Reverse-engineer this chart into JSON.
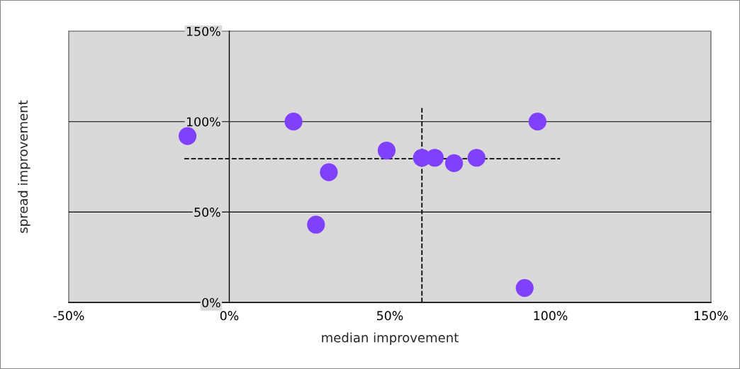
{
  "chart_data": {
    "type": "scatter",
    "xlabel": "median improvement",
    "ylabel": "spread improvement",
    "xlim": [
      -50,
      150
    ],
    "ylim": [
      0,
      150
    ],
    "xticks": [
      {
        "value": -50,
        "label": "-50%"
      },
      {
        "value": 0,
        "label": "0%"
      },
      {
        "value": 50,
        "label": "50%"
      },
      {
        "value": 100,
        "label": "100%"
      },
      {
        "value": 150,
        "label": "150%"
      }
    ],
    "yticks": [
      {
        "value": 0,
        "label": "0%"
      },
      {
        "value": 50,
        "label": "50%"
      },
      {
        "value": 100,
        "label": "100%"
      },
      {
        "value": 150,
        "label": "150%"
      }
    ],
    "ref_lines": [
      {
        "axis": "y",
        "value": 50,
        "color": "#000000"
      },
      {
        "axis": "y",
        "value": 100,
        "color": "#000000"
      }
    ],
    "series": [
      {
        "marker": "circle",
        "color": "#8040ff",
        "x": [
          -13,
          20,
          49,
          31,
          27,
          60,
          64,
          70,
          77,
          96,
          92
        ],
        "values": [
          92,
          100,
          84,
          72,
          43,
          80,
          80,
          77,
          80,
          100,
          8
        ]
      },
      {
        "type": "line",
        "marker": "none",
        "line_style": "dashed",
        "color": "#000000",
        "x": [
          60,
          60
        ],
        "values": [
          0,
          108
        ]
      },
      {
        "type": "line",
        "marker": "none",
        "line_style": "dashed",
        "color": "#000000",
        "x": [
          -14,
          103
        ],
        "values": [
          79.5,
          79.5
        ]
      }
    ]
  }
}
